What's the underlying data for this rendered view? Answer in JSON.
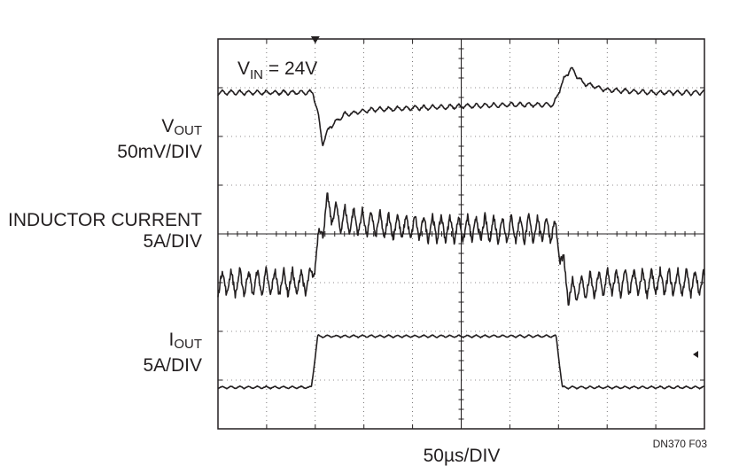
{
  "chart_data": {
    "type": "line",
    "title": "",
    "annotation": {
      "vin_label": "V",
      "vin_sub": "IN",
      "vin_value": " = 24V"
    },
    "xlabel": "50µs/DIV",
    "figure_id": "DN370 F03",
    "grid": true,
    "x_divisions": 10,
    "y_divisions": 8,
    "xlim": [
      0,
      10
    ],
    "x_units": "divisions (50µs/DIV)",
    "trigger_marker_x": 2.0,
    "series": [
      {
        "key": "vout",
        "label_main": "V",
        "label_sub": "OUT",
        "label_scale": "50mV/DIV",
        "units": "divisions (50mV/DIV)",
        "ripple_pp": 0.1,
        "x": [
          0,
          1.95,
          2.05,
          2.15,
          2.3,
          2.6,
          3.2,
          4.5,
          6.0,
          6.9,
          7.1,
          7.25,
          7.5,
          8.0,
          9.0,
          10.0
        ],
        "y": [
          6.9,
          6.9,
          6.5,
          5.85,
          6.2,
          6.45,
          6.55,
          6.6,
          6.65,
          6.65,
          7.15,
          7.4,
          7.1,
          6.95,
          6.9,
          6.9
        ]
      },
      {
        "key": "inductor",
        "label_main": "INDUCTOR CURRENT",
        "label_scale": "5A/DIV",
        "units": "divisions (5A/DIV)",
        "ripple_pp": 0.55,
        "x": [
          0,
          1.9,
          2.1,
          2.25,
          2.5,
          3.5,
          5.0,
          6.9,
          7.0,
          7.2,
          7.5,
          8.0,
          10.0
        ],
        "y": [
          3.0,
          3.0,
          4.0,
          4.55,
          4.3,
          4.15,
          4.1,
          4.1,
          3.8,
          2.8,
          2.9,
          3.0,
          3.0
        ]
      },
      {
        "key": "iout",
        "label_main": "I",
        "label_sub": "OUT",
        "label_scale": "5A/DIV",
        "units": "divisions (5A/DIV)",
        "ripple_pp": 0.05,
        "x": [
          0,
          1.92,
          2.05,
          6.95,
          7.08,
          10.0
        ],
        "y": [
          0.85,
          0.85,
          1.9,
          1.9,
          0.85,
          0.85
        ]
      }
    ]
  }
}
